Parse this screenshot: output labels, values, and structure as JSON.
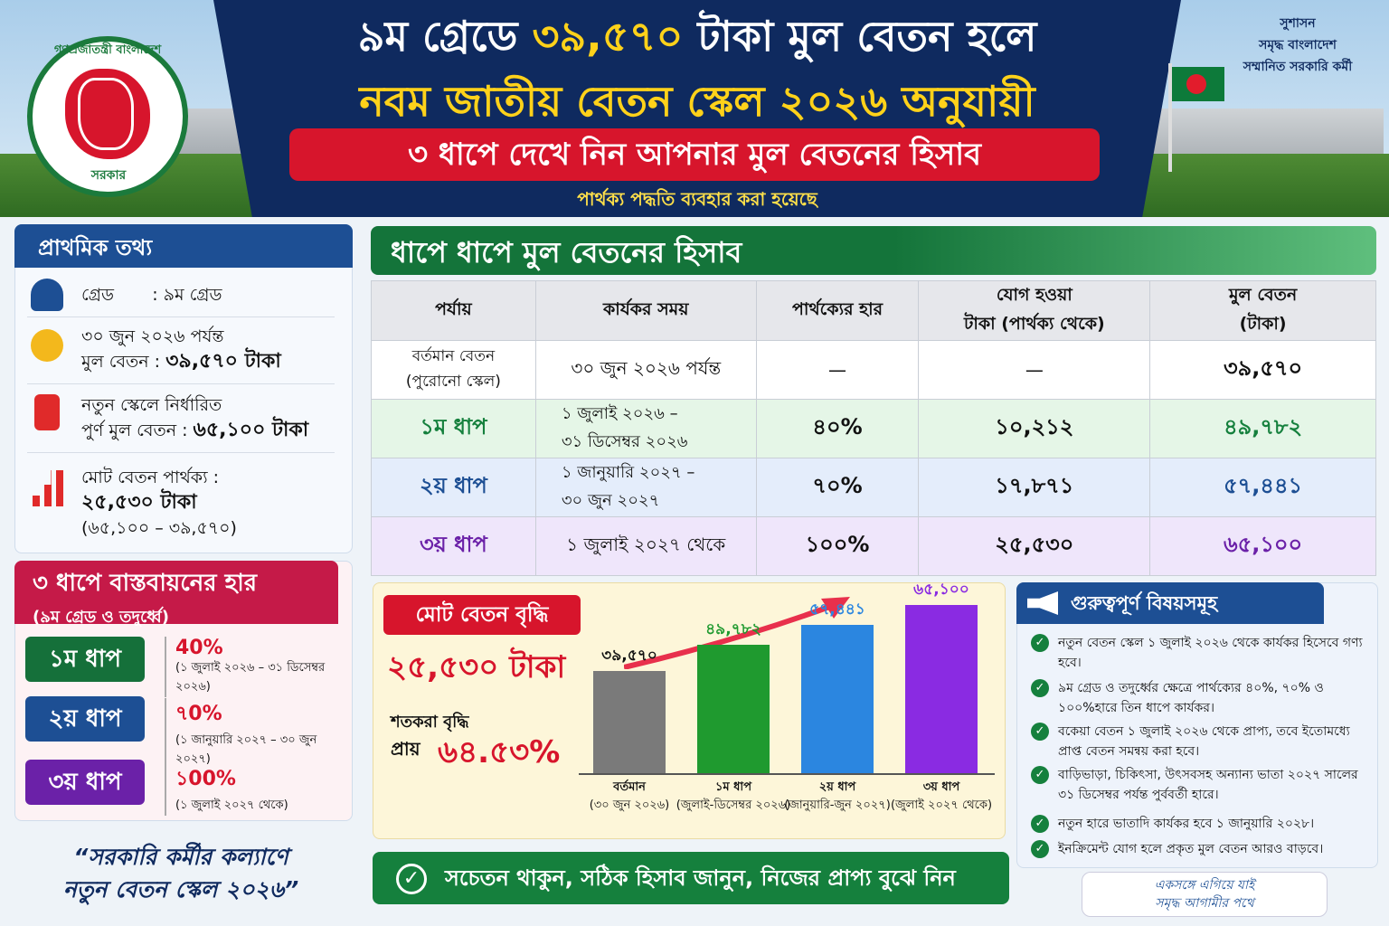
{
  "header": {
    "title_pre": "৯ম গ্রেডে ",
    "title_hl": "৩৯,৫৭০",
    "title_post": " টাকা মুল বেতন হলে",
    "title2": "নবম জাতীয় বেতন স্কেল ২০২৬ অনুযায়ী",
    "subtitle": "৩ ধাপে দেখে নিন আপনার মুল বেতনের হিসাব",
    "note": "পার্থক্য পদ্ধতি ব্যবহার করা হয়েছে",
    "seal_top": "গণপ্রজাতন্ত্রী বাংলাদেশ",
    "seal_bottom": "সরকার",
    "slogan": [
      "সুশাসন",
      "সমৃদ্ধ বাংলাদেশ",
      "সম্মানিত সরকারি কর্মী"
    ]
  },
  "info": {
    "title": "প্রাথমিক তথ্য",
    "grade_label": "গ্রেড",
    "grade_value": ": ৯ম গ্রেড",
    "current_line1": "৩০ জুন ২০২৬ পর্যন্ত",
    "current_line2_label": "মুল বেতন : ",
    "current_line2_value": "৩৯,৫৭০ টাকা",
    "new_line1": "নতুন স্কেলে নির্ধারিত",
    "new_line2_label": "পুর্ণ মুল বেতন : ",
    "new_line2_value": "৬৫,১০০ টাকা",
    "diff_line1": "মোট বেতন পার্থক্য :",
    "diff_line2": "২৫,৫৩০ টাকা",
    "diff_line3": "(৬৫,১০০ – ৩৯,৫৭০)"
  },
  "rates": {
    "title": "৩ ধাপে বাস্তবায়নের হার",
    "subtitle": "(৯ম গ্রেড ও তদুর্ধ্বে)",
    "items": [
      {
        "step": "১ম ধাপ",
        "pct": "40%",
        "period": "(১ জুলাই ২০২৬ – ৩১ ডিসেম্বর ২০২৬)",
        "color": "#15703a"
      },
      {
        "step": "২য় ধাপ",
        "pct": "৭0%",
        "period": "(১ জানুয়ারি ২০২৭ – ৩০ জুন ২০২৭)",
        "color": "#1d4f94"
      },
      {
        "step": "৩য় ধাপ",
        "pct": "১00%",
        "period": "(১ জুলাই ২০২৭ থেকে)",
        "color": "#6b21a8"
      }
    ]
  },
  "quote": [
    "“সরকারি কর্মীর কল্যাণে",
    "নতুন বেতন স্কেল ২০২৬”"
  ],
  "table": {
    "title": "ধাপে ধাপে মুল বেতনের হিসাব",
    "headers": [
      "পর্যায়",
      "কার্যকর সময়",
      "পার্থক্যের হার",
      "যোগ হওয়া\nটাকা (পার্থক্য থেকে)",
      "মুল বেতন\n(টাকা)"
    ],
    "rows": [
      {
        "phase": "বর্তমান বেতন\n(পুরোনো স্কেল)",
        "period": "৩০ জুন ২০২৬ পর্যন্ত",
        "rate": "—",
        "add": "—",
        "salary": "৩৯,৫৭০"
      },
      {
        "phase": "১ম ধাপ",
        "period": "১ জুলাই ২০২৬ –\n৩১ ডিসেম্বর ২০২৬",
        "rate": "৪০%",
        "add": "১০,২১২",
        "salary": "৪৯,৭৮২"
      },
      {
        "phase": "২য় ধাপ",
        "period": "১ জানুয়ারি ২০২৭ –\n৩০ জুন ২০২৭",
        "rate": "৭০%",
        "add": "১৭,৮৭১",
        "salary": "৫৭,৪৪১"
      },
      {
        "phase": "৩য় ধাপ",
        "period": "১ জুলাই ২০২৭ থেকে",
        "rate": "১০০%",
        "add": "২৫,৫৩০",
        "salary": "৬৫,১০০"
      }
    ]
  },
  "growth": {
    "title": "মোট বেতন বৃদ্ধি",
    "amount": "২৫,৫৩০ টাকা",
    "pct_label1": "শতকরা বৃদ্ধি",
    "pct_label2": "প্রায়",
    "pct_value": "৬৪.৫৩%"
  },
  "chart_data": {
    "type": "bar",
    "categories": [
      "বর্তমান\n(৩০ জুন ২০২৬)",
      "১ম ধাপ\n(জুলাই-ডিসেম্বর ২০২৬)",
      "২য় ধাপ\n(জানুয়ারি-জুন ২০২৭)",
      "৩য় ধাপ\n(জুলাই ২০২৭ থেকে)"
    ],
    "values": [
      39570,
      49782,
      57441,
      65100
    ],
    "labels": [
      "৩৯,৫৭০",
      "৪৯,৭৮২",
      "৫৭,৪৪১",
      "৬৫,১০০"
    ],
    "colors": [
      "#7a7a7a",
      "#1f9a2f",
      "#2b86e0",
      "#8a2be2"
    ],
    "ylim": [
      0,
      70000
    ]
  },
  "important": {
    "title": "গুরুত্বপূর্ণ বিষয়সমূহ",
    "items": [
      "নতুন বেতন স্কেল ১ জুলাই ২০২৬ থেকে কার্যকর হিসেবে গণ্য হবে।",
      "৯ম গ্রেড ও তদুর্ধ্বের ক্ষেত্রে পার্থক্যের ৪০%, ৭০% ও ১০০%হারে তিন ধাপে কার্যকর।",
      "বকেয়া বেতন ১ জুলাই ২০২৬ থেকে প্রাপ্য, তবে ইতোমধ্যে প্রাপ্ত বেতন সমন্বয় করা হবে।",
      "বাড়িভাড়া, চিকিৎসা, উৎসবসহ অন্যান্য ভাতা ২০২৭ সালের ৩১ ডিসেম্বর পর্যন্ত পুর্ববর্তী হারে।",
      "নতুন হারে ভাতাদি কার্যকর হবে ১ জানুয়ারি ২০২৮।",
      "ইনক্রিমেন্ট যোগ হলে প্রকৃত মুল বেতন আরও বাড়বে।"
    ]
  },
  "footer": {
    "text": "সচেতন থাকুন, সঠিক হিসাব জানুন, নিজের প্রাপ্য বুঝে নিন",
    "sign": [
      "একসঙ্গে এগিয়ে যাই",
      "সমৃদ্ধ আগামীর পথে"
    ]
  }
}
